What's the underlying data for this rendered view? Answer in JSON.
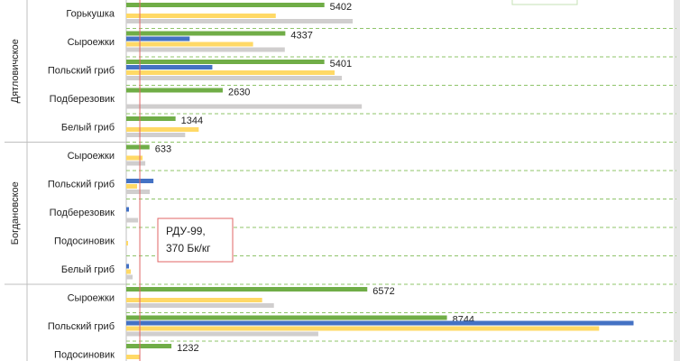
{
  "chart_data": {
    "type": "bar",
    "orientation": "horizontal",
    "groups": [
      {
        "label": "Дятловичское",
        "categories": [
          "Горькушка",
          "Сыроежки",
          "Польский гриб",
          "Подберезовик",
          "Белый гриб"
        ]
      },
      {
        "label": "Богдановское",
        "categories": [
          "Сыроежки",
          "Польский гриб",
          "Подберезовик",
          "Подосиновик",
          "Белый гриб"
        ]
      },
      {
        "label": null,
        "categories": [
          "Сыроежки",
          "Польский гриб",
          "Подосиновик"
        ]
      }
    ],
    "series": [
      {
        "color": "#70ad47",
        "labeled": true,
        "values": [
          5402,
          4337,
          5401,
          2630,
          1344,
          633,
          null,
          null,
          null,
          null,
          6572,
          8744,
          1232
        ]
      },
      {
        "color": "#4472c4",
        "labeled": false,
        "values": [
          null,
          1729,
          2347,
          null,
          null,
          null,
          741,
          74,
          null,
          74,
          null,
          13832,
          null
        ]
      },
      {
        "color": "#ffd966",
        "labeled": false,
        "values": [
          4076,
          3458,
          5681,
          null,
          1976,
          445,
          296,
          null,
          49,
          124,
          3705,
          12893,
          370
        ]
      },
      {
        "color": "#d0cece",
        "labeled": false,
        "values": [
          6175,
          4323,
          5879,
          6422,
          1606,
          519,
          642,
          321,
          null,
          173,
          4026,
          5236,
          null
        ]
      }
    ],
    "xlim": [
      0,
      15000
    ],
    "reference_line": {
      "value": 370,
      "color": "#e06666",
      "label": [
        "РДУ-99,",
        "370 Бк/кг"
      ]
    }
  }
}
